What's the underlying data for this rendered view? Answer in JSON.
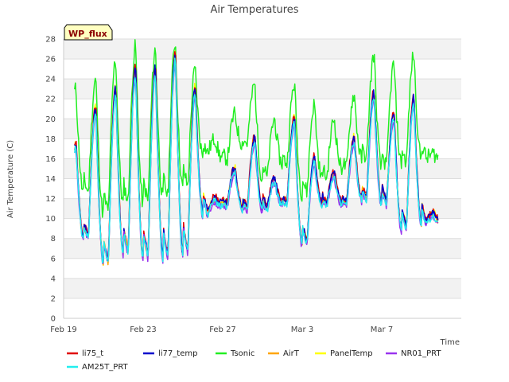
{
  "chart_data": {
    "type": "line",
    "title": "Air Temperatures",
    "xlabel": "Time",
    "ylabel": "Air Temperature (C)",
    "badge": "WP_flux",
    "ylim": [
      0,
      28
    ],
    "yticks": [
      0,
      2,
      4,
      6,
      8,
      10,
      12,
      14,
      16,
      18,
      20,
      22,
      24,
      26,
      28
    ],
    "xlim": [
      "Feb 19",
      "Mar 10"
    ],
    "xticks": [
      {
        "label": "Feb 19",
        "day": 0
      },
      {
        "label": "Feb 23",
        "day": 4
      },
      {
        "label": "Feb 27",
        "day": 8
      },
      {
        "label": "Mar 3",
        "day": 12
      },
      {
        "label": "Mar 7",
        "day": 16
      }
    ],
    "days": [
      "Feb 19",
      "Feb 20",
      "Feb 21",
      "Feb 22",
      "Feb 23",
      "Feb 24",
      "Feb 25",
      "Feb 26",
      "Feb 27",
      "Feb 28",
      "Mar 1",
      "Mar 2",
      "Mar 3",
      "Mar 4",
      "Mar 5",
      "Mar 6",
      "Mar 7",
      "Mar 8",
      "Mar 9"
    ],
    "daily_min": [
      10.5,
      8.0,
      5.5,
      6.5,
      6.0,
      6.0,
      6.5,
      10.5,
      11.5,
      11.0,
      11.0,
      11.5,
      7.5,
      11.5,
      11.5,
      12.0,
      11.5,
      9.0,
      9.5
    ],
    "daily_max": [
      17.5,
      21.0,
      23.0,
      25.0,
      25.0,
      26.5,
      23.0,
      12.0,
      15.0,
      18.0,
      14.0,
      20.0,
      16.0,
      14.5,
      18.0,
      22.5,
      20.5,
      22.0,
      10.5
    ],
    "tsonic_min": [
      16.5,
      12.5,
      10.5,
      11.5,
      11.5,
      12.0,
      13.0,
      16.5,
      16.0,
      17.5,
      14.0,
      15.5,
      12.5,
      14.0,
      15.0,
      16.0,
      15.0,
      15.5,
      16.0
    ],
    "tsonic_max": [
      23.0,
      24.0,
      26.0,
      27.3,
      27.0,
      27.8,
      25.0,
      18.0,
      20.5,
      23.5,
      20.0,
      23.5,
      21.5,
      20.0,
      22.5,
      26.5,
      25.5,
      26.5,
      16.5
    ],
    "series": [
      {
        "name": "li75_t",
        "color": "#e00000"
      },
      {
        "name": "li77_temp",
        "color": "#0000cc"
      },
      {
        "name": "Tsonic",
        "color": "#22ee22"
      },
      {
        "name": "AirT",
        "color": "#ffa500"
      },
      {
        "name": "PanelTemp",
        "color": "#ffff00"
      },
      {
        "name": "NR01_PRT",
        "color": "#9933ee"
      },
      {
        "name": "AM25T_PRT",
        "color": "#22eeee"
      }
    ],
    "grid": true,
    "legend_placement": "bottom"
  }
}
